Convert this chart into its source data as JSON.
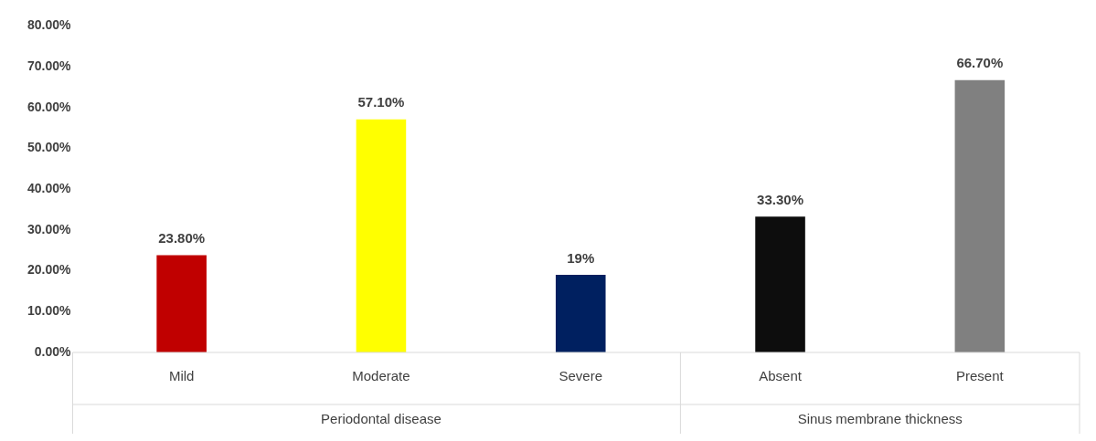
{
  "chart_data": {
    "type": "bar",
    "categories": [
      "Mild",
      "Moderate",
      "Severe",
      "Absent",
      "Present"
    ],
    "values": [
      23.8,
      57.1,
      19,
      33.3,
      66.7
    ],
    "colors": [
      "#c00000",
      "#ffff00",
      "#002060",
      "#0d0d0d",
      "#808080"
    ],
    "value_labels": [
      "23.80%",
      "57.10%",
      "19%",
      "33.30%",
      "66.70%"
    ],
    "ylim": [
      0,
      80
    ],
    "yticks": [
      {
        "value": 0,
        "label": "0.00%"
      },
      {
        "value": 10,
        "label": "10.00%"
      },
      {
        "value": 20,
        "label": "20.00%"
      },
      {
        "value": 30,
        "label": "30.00%"
      },
      {
        "value": 40,
        "label": "40.00%"
      },
      {
        "value": 50,
        "label": "50.00%"
      },
      {
        "value": 60,
        "label": "60.00%"
      },
      {
        "value": 70,
        "label": "70.00%"
      },
      {
        "value": 80,
        "label": "80.00%"
      }
    ],
    "annotations": [
      "Periodontal disease",
      "Sinus membrane thickness"
    ],
    "grid": false,
    "legend": false
  }
}
